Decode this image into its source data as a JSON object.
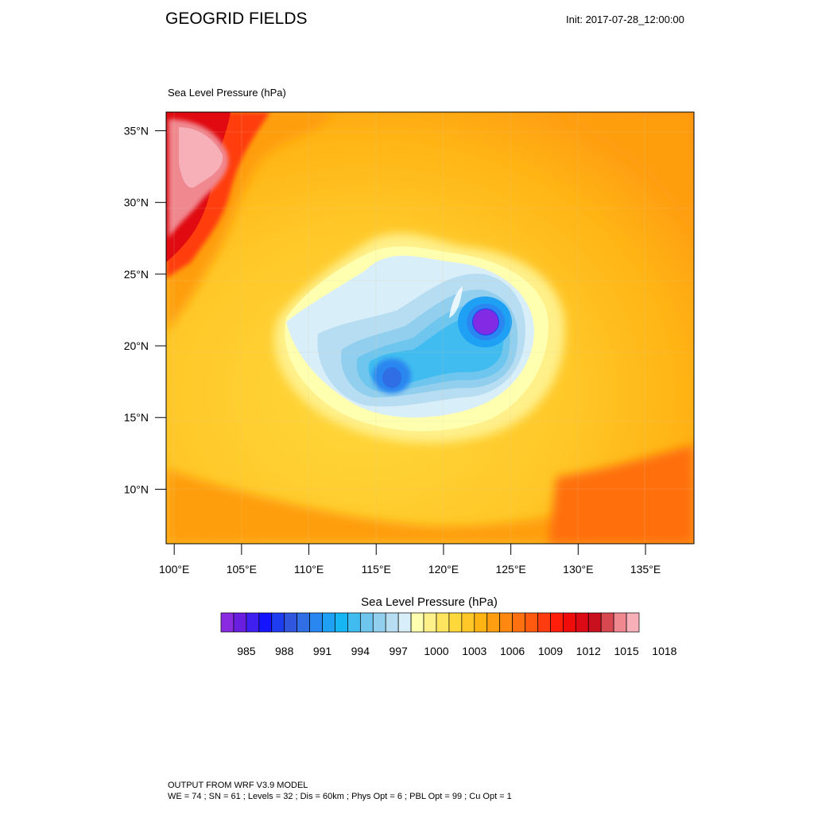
{
  "header": {
    "title": "GEOGRID FIELDS",
    "init": "Init: 2017-07-28_12:00:00"
  },
  "panel": {
    "field_label": "Sea Level Pressure   (hPa)"
  },
  "map": {
    "lat_ticks": [
      "35°N",
      "30°N",
      "25°N",
      "20°N",
      "15°N",
      "10°N"
    ],
    "lon_ticks": [
      "100°E",
      "105°E",
      "110°E",
      "115°E",
      "120°E",
      "125°E",
      "130°E",
      "135°E"
    ],
    "lat_values": [
      35,
      30,
      25,
      20,
      15,
      10
    ],
    "lon_values": [
      100,
      105,
      110,
      115,
      120,
      125,
      130,
      135
    ],
    "lon_range": [
      99.4,
      138.6
    ],
    "lat_range": [
      6.2,
      36.3
    ],
    "cyclones": [
      {
        "lon": 123.2,
        "lat": 22.0,
        "pressure": 985
      },
      {
        "lon": 116.4,
        "lat": 18.0,
        "pressure": 993
      }
    ]
  },
  "colorbar": {
    "title": "Sea Level Pressure  (hPa)",
    "labels": [
      "985",
      "988",
      "991",
      "994",
      "997",
      "1000",
      "1003",
      "1006",
      "1009",
      "1012",
      "1015",
      "1018"
    ],
    "colors": [
      "#8a2be2",
      "#6a1fe0",
      "#4020f0",
      "#1414ff",
      "#1f3df0",
      "#2f56dc",
      "#2f6ee4",
      "#2a86f0",
      "#1ea0f5",
      "#16b6f5",
      "#40bcf0",
      "#6ec6ee",
      "#92cfee",
      "#b6ddf2",
      "#d8eef8",
      "#ffffb0",
      "#fff08a",
      "#ffe460",
      "#ffd83c",
      "#ffc828",
      "#ffb414",
      "#ff9e10",
      "#ff8810",
      "#ff7010",
      "#ff5a10",
      "#ff3c10",
      "#ff1e0a",
      "#f00c0a",
      "#dc0a14",
      "#c8101e",
      "#d84850",
      "#f08890",
      "#f8b0b8"
    ]
  },
  "footer": {
    "model": "OUTPUT FROM WRF V3.9 MODEL",
    "params": "WE = 74 ; SN = 61 ; Levels = 32 ; Dis = 60km ; Phys Opt = 6 ; PBL Opt = 99 ; Cu Opt = 1"
  }
}
